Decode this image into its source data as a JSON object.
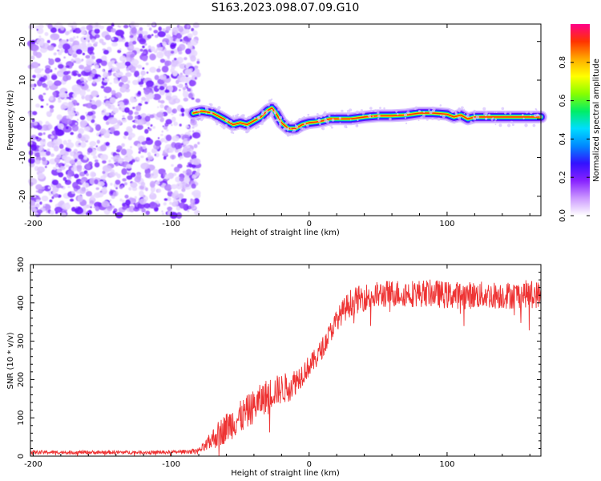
{
  "title": "S163.2023.098.07.09.G10",
  "chart_data": [
    {
      "type": "heatmap",
      "xlabel": "Height of straight line (km)",
      "ylabel": "Frequency (Hz)",
      "xlim": [
        -202,
        168
      ],
      "ylim": [
        -25,
        24.5
      ],
      "xticks": [
        -200,
        -100,
        0,
        100
      ],
      "yticks": [
        -20,
        -10,
        0,
        10,
        20
      ],
      "xtick_labels": [
        "-200",
        "-100",
        "0",
        "100"
      ],
      "ytick_labels": [
        "-20",
        "-10",
        "0",
        "10",
        "20"
      ],
      "noise_region_x": [
        -202,
        -80
      ],
      "signal_track": {
        "x": [
          -84,
          -78,
          -70,
          -62,
          -55,
          -50,
          -45,
          -40,
          -35,
          -30,
          -27,
          -24,
          -20,
          -15,
          -10,
          -5,
          0,
          5,
          10,
          15,
          20,
          30,
          40,
          50,
          60,
          70,
          80,
          90,
          100,
          105,
          110,
          115,
          120,
          130,
          140,
          150,
          160,
          168
        ],
        "freq": [
          1.5,
          2,
          1.5,
          0,
          -1.5,
          -1,
          -1.5,
          -0.5,
          0.5,
          2.2,
          2.8,
          1.5,
          -1,
          -2.5,
          -2.5,
          -1.5,
          -1,
          -0.8,
          -0.5,
          0,
          0,
          0,
          0.5,
          0.8,
          0.8,
          1,
          1.5,
          1.5,
          1.2,
          0.5,
          1,
          0,
          0.5,
          0.5,
          0.5,
          0.5,
          0.5,
          0.5
        ]
      },
      "colorbar": {
        "label": "Normalized spectral amplitude",
        "range": [
          0,
          1
        ],
        "ticks": [
          0,
          0.2,
          0.4,
          0.6,
          0.8
        ],
        "tick_labels": [
          "0.0",
          "0.2",
          "0.4",
          "0.6",
          "0.8"
        ],
        "colors": [
          "#ffffff",
          "#cc99ff",
          "#8822ff",
          "#3311ff",
          "#0088ff",
          "#00ddff",
          "#00ee66",
          "#88ff00",
          "#ffff00",
          "#ffaa00",
          "#ff3300",
          "#ff0088"
        ]
      }
    },
    {
      "type": "line",
      "xlabel": "Height of straight line (km)",
      "ylabel": "SNR (10 * v/v)",
      "xlim": [
        -202,
        168
      ],
      "ylim": [
        0,
        500
      ],
      "xticks": [
        -200,
        -100,
        0,
        100
      ],
      "yticks": [
        0,
        100,
        200,
        300,
        400,
        500
      ],
      "xtick_labels": [
        "-200",
        "-100",
        "0",
        "100"
      ],
      "ytick_labels": [
        "0",
        "100",
        "200",
        "300",
        "400",
        "500"
      ],
      "series": [
        {
          "name": "SNR",
          "color": "#ee3333",
          "x": [
            -202,
            -180,
            -160,
            -140,
            -120,
            -100,
            -90,
            -80,
            -75,
            -70,
            -65,
            -60,
            -55,
            -50,
            -45,
            -40,
            -35,
            -30,
            -25,
            -20,
            -15,
            -10,
            -5,
            0,
            5,
            10,
            15,
            20,
            25,
            30,
            40,
            50,
            60,
            70,
            80,
            90,
            100,
            110,
            120,
            130,
            140,
            150,
            160,
            168
          ],
          "y": [
            10,
            10,
            10,
            10,
            10,
            10,
            12,
            15,
            25,
            45,
            60,
            75,
            90,
            100,
            115,
            130,
            145,
            160,
            170,
            175,
            180,
            195,
            215,
            235,
            255,
            285,
            320,
            355,
            380,
            400,
            415,
            420,
            425,
            425,
            425,
            425,
            420,
            420,
            420,
            420,
            420,
            420,
            425,
            420
          ],
          "noise": [
            6,
            6,
            6,
            6,
            6,
            6,
            6,
            8,
            20,
            35,
            45,
            50,
            55,
            55,
            55,
            55,
            55,
            55,
            50,
            50,
            50,
            45,
            40,
            35,
            35,
            35,
            35,
            35,
            40,
            45,
            45,
            45,
            45,
            45,
            45,
            45,
            45,
            45,
            45,
            45,
            45,
            45,
            45,
            45
          ]
        }
      ]
    }
  ]
}
